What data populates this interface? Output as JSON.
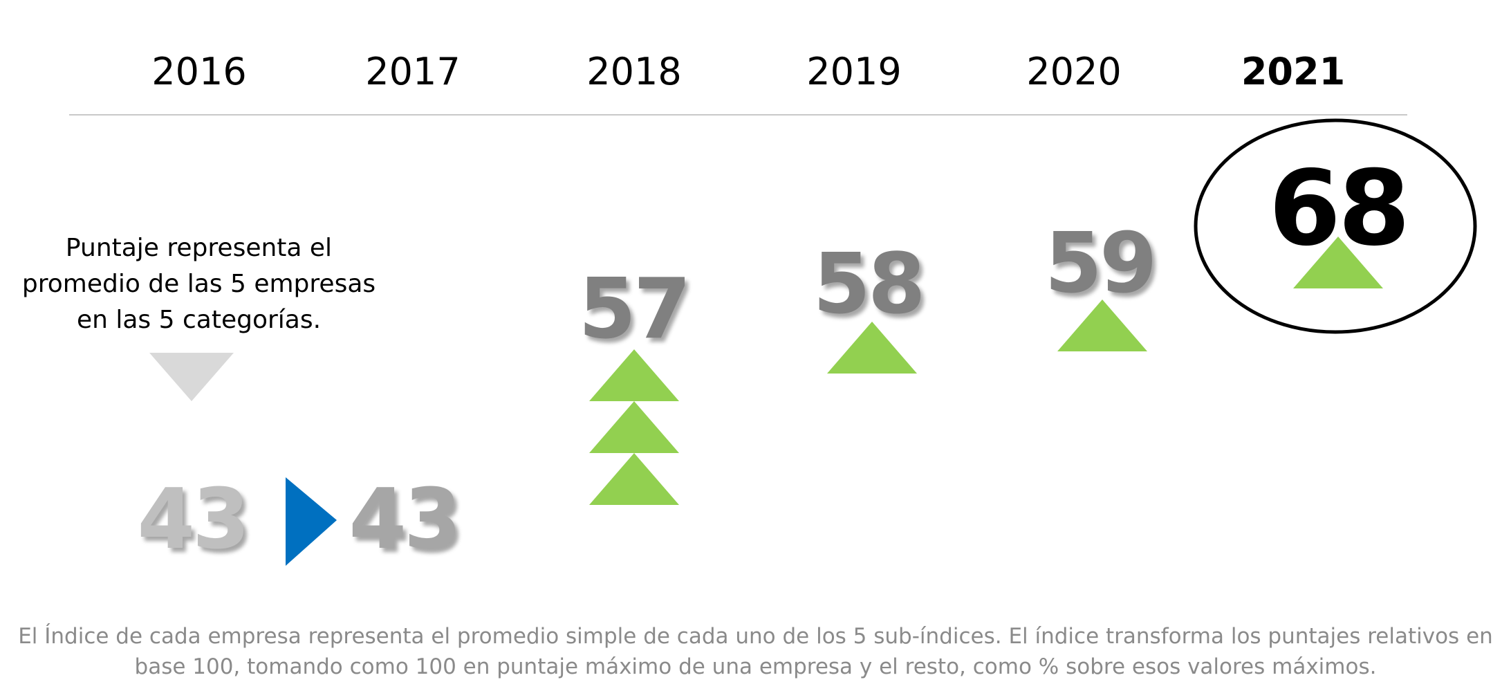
{
  "chart_data": {
    "type": "line",
    "title": "",
    "xlabel": "",
    "ylabel": "",
    "x": [
      "2016",
      "2017",
      "2018",
      "2019",
      "2020",
      "2021"
    ],
    "series": [
      {
        "values": [
          43,
          43,
          57,
          58,
          59,
          68
        ],
        "trend_markers": [
          "none",
          "flat",
          "up-3",
          "up-1",
          "up-1",
          "up-1"
        ]
      }
    ],
    "ylim": [
      40,
      70
    ],
    "highlight": "2021",
    "grid": false,
    "legend": "none"
  },
  "note": {
    "line1": "Puntaje representa el",
    "line2": "promedio de las 5 empresas",
    "line3": "en las 5 categorías."
  },
  "footnote": {
    "line1": "El Índice de cada empresa representa el promedio simple de cada uno de los 5 sub-índices.  El índice transforma los puntajes relativos en",
    "line2": "base 100, tomando como 100 en puntaje máximo de una empresa y el resto, como % sobre esos valores máximos."
  },
  "colors": {
    "up_arrow": "#92d050",
    "flat_arrow": "#0070c0",
    "down_arrow": "#d9d9d9",
    "score_light": "#bfbfbf",
    "score_mid": "#808080",
    "score_highlight": "#000000",
    "footnote_text": "#8a8a8a"
  }
}
